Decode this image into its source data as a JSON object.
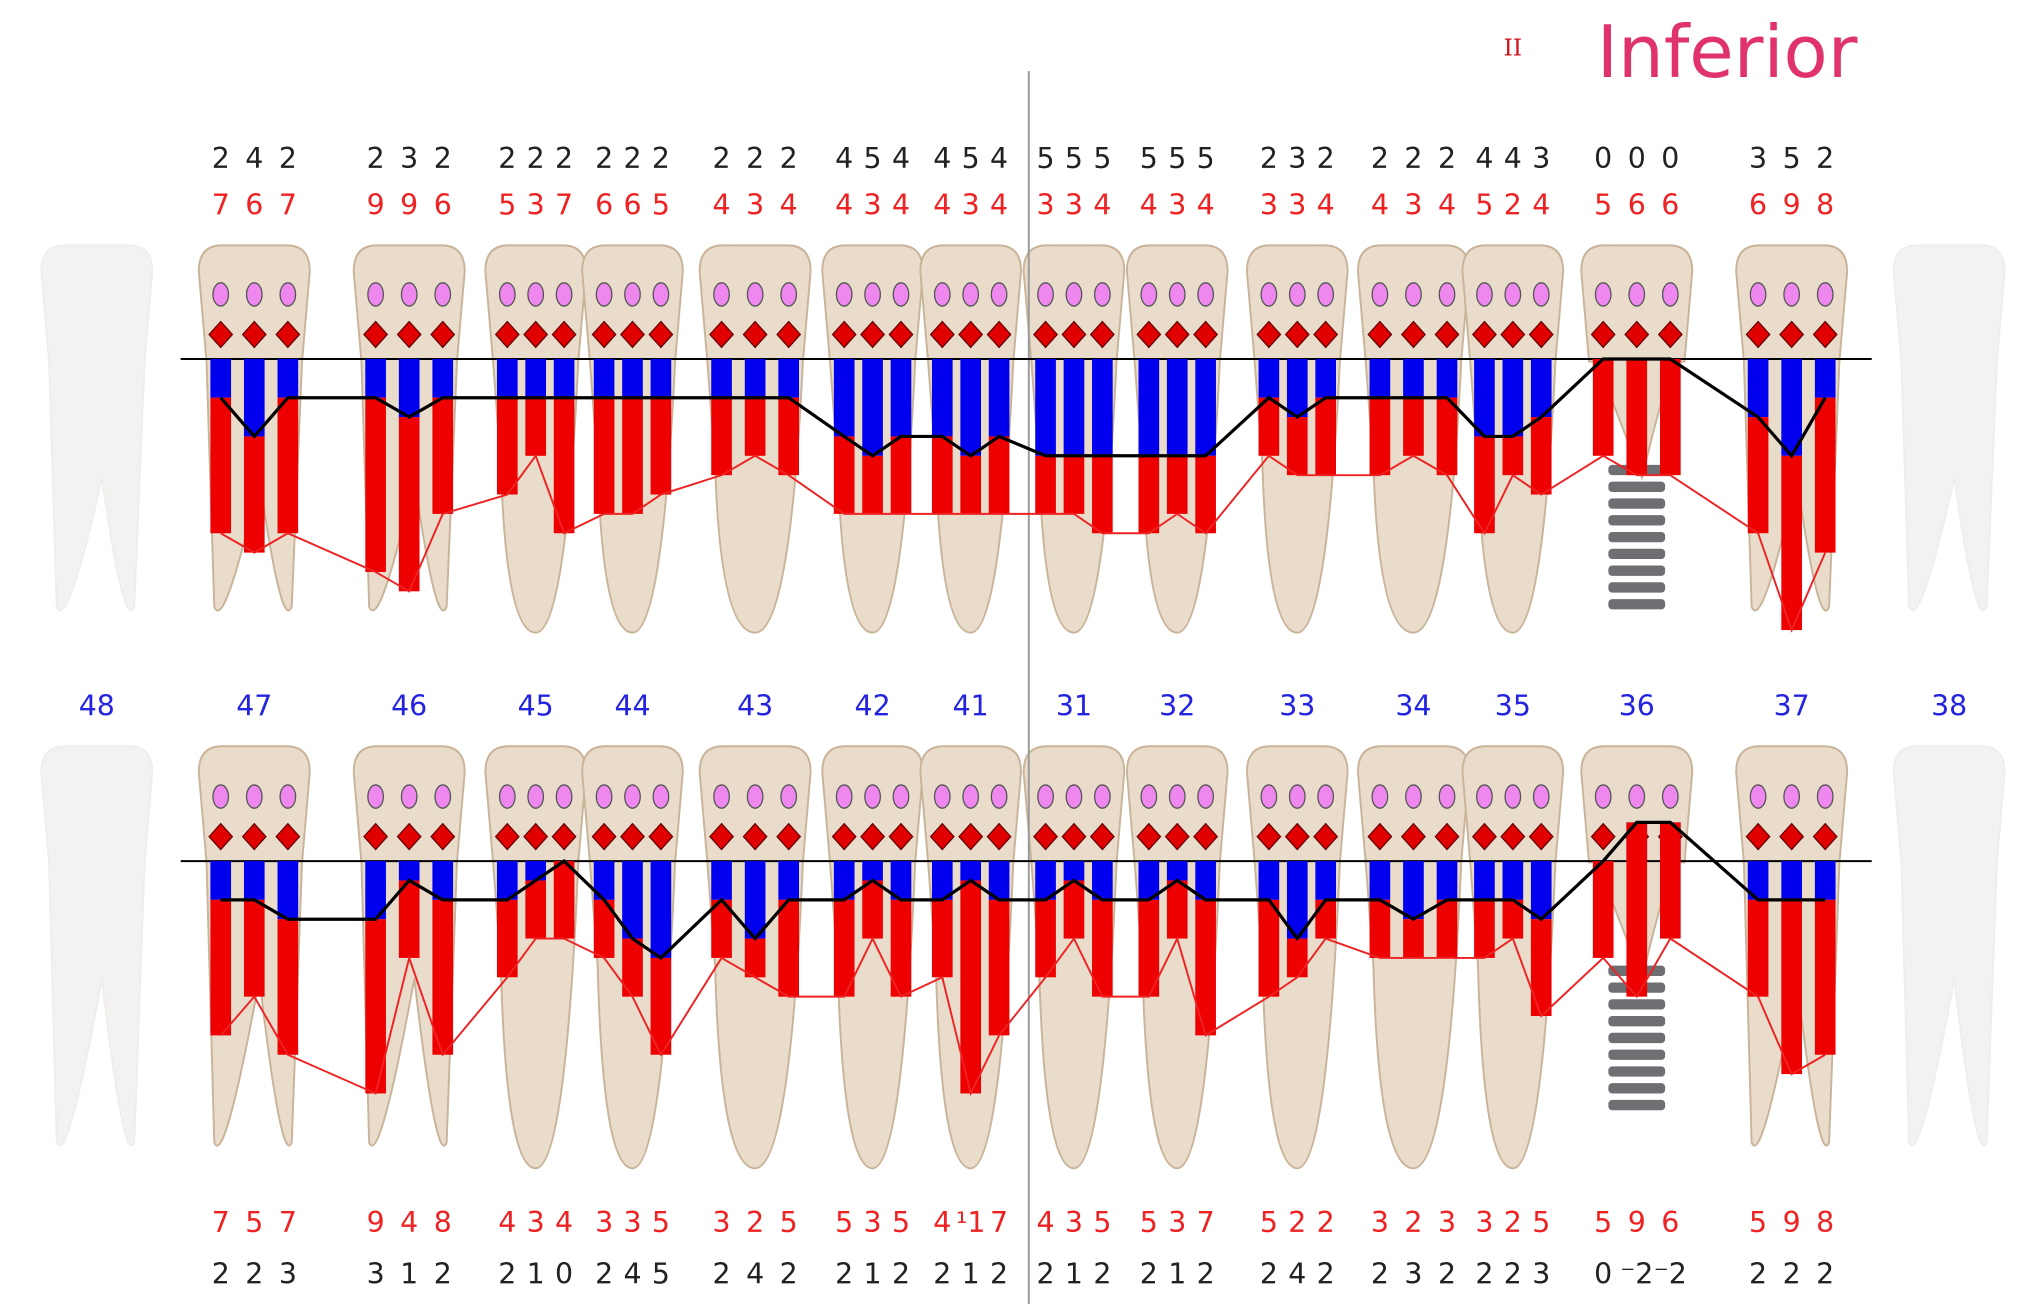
{
  "header": {
    "marker": "II",
    "title": "Inferior"
  },
  "teeth": [
    {
      "number": 48
    },
    {
      "number": 47,
      "upper_pd": [
        2,
        4,
        2
      ],
      "upper_cal": [
        7,
        6,
        7
      ],
      "lower_cal": [
        7,
        5,
        7
      ],
      "lower_pd": [
        2,
        2,
        3
      ]
    },
    {
      "number": 46,
      "upper_pd": [
        2,
        3,
        2
      ],
      "upper_cal": [
        9,
        9,
        6
      ],
      "lower_cal": [
        9,
        4,
        8
      ],
      "lower_pd": [
        3,
        1,
        2
      ]
    },
    {
      "number": 45,
      "upper_pd": [
        2,
        2,
        2
      ],
      "upper_cal": [
        5,
        3,
        7
      ],
      "lower_cal": [
        4,
        3,
        4
      ],
      "lower_pd": [
        2,
        1,
        0
      ]
    },
    {
      "number": 44,
      "upper_pd": [
        2,
        2,
        2
      ],
      "upper_cal": [
        6,
        6,
        5
      ],
      "lower_cal": [
        3,
        3,
        5
      ],
      "lower_pd": [
        2,
        4,
        5
      ]
    },
    {
      "number": 43,
      "upper_pd": [
        2,
        2,
        2
      ],
      "upper_cal": [
        4,
        3,
        4
      ],
      "lower_cal": [
        3,
        2,
        5
      ],
      "lower_pd": [
        2,
        4,
        2
      ]
    },
    {
      "number": 42,
      "upper_pd": [
        4,
        5,
        4
      ],
      "upper_cal": [
        4,
        3,
        4
      ],
      "lower_cal": [
        5,
        3,
        5
      ],
      "lower_pd": [
        2,
        1,
        2
      ]
    },
    {
      "number": 41,
      "upper_pd": [
        4,
        5,
        4
      ],
      "upper_cal": [
        4,
        3,
        4
      ],
      "lower_cal": [
        4,
        {
          "value": 11,
          "label": "¹1"
        },
        7
      ],
      "lower_pd": [
        2,
        1,
        2
      ]
    },
    {
      "number": 31,
      "upper_pd": [
        5,
        5,
        5
      ],
      "upper_cal": [
        3,
        3,
        4
      ],
      "lower_cal": [
        4,
        3,
        5
      ],
      "lower_pd": [
        2,
        1,
        2
      ]
    },
    {
      "number": 32,
      "upper_pd": [
        5,
        5,
        5
      ],
      "upper_cal": [
        4,
        3,
        4
      ],
      "lower_cal": [
        5,
        3,
        7
      ],
      "lower_pd": [
        2,
        1,
        2
      ]
    },
    {
      "number": 33,
      "upper_pd": [
        2,
        3,
        2
      ],
      "upper_cal": [
        3,
        3,
        4
      ],
      "lower_cal": [
        5,
        2,
        2
      ],
      "lower_pd": [
        2,
        4,
        2
      ]
    },
    {
      "number": 34,
      "upper_pd": [
        2,
        2,
        2
      ],
      "upper_cal": [
        4,
        3,
        4
      ],
      "lower_cal": [
        3,
        2,
        3
      ],
      "lower_pd": [
        2,
        3,
        2
      ]
    },
    {
      "number": 35,
      "upper_pd": [
        4,
        4,
        3
      ],
      "upper_cal": [
        5,
        2,
        4
      ],
      "lower_cal": [
        3,
        2,
        5
      ],
      "lower_pd": [
        2,
        2,
        3
      ]
    },
    {
      "number": 36,
      "upper_pd": [
        0,
        0,
        0
      ],
      "upper_cal": [
        5,
        6,
        6
      ],
      "lower_cal": [
        5,
        9,
        6
      ],
      "lower_pd": [
        0,
        {
          "value": -2,
          "label": "⁻2"
        },
        {
          "value": -2,
          "label": "⁻2"
        }
      ]
    },
    {
      "number": 37,
      "upper_pd": [
        3,
        5,
        2
      ],
      "upper_cal": [
        6,
        9,
        8
      ],
      "lower_cal": [
        5,
        9,
        8
      ],
      "lower_pd": [
        2,
        2,
        2
      ]
    },
    {
      "number": 38
    }
  ]
}
